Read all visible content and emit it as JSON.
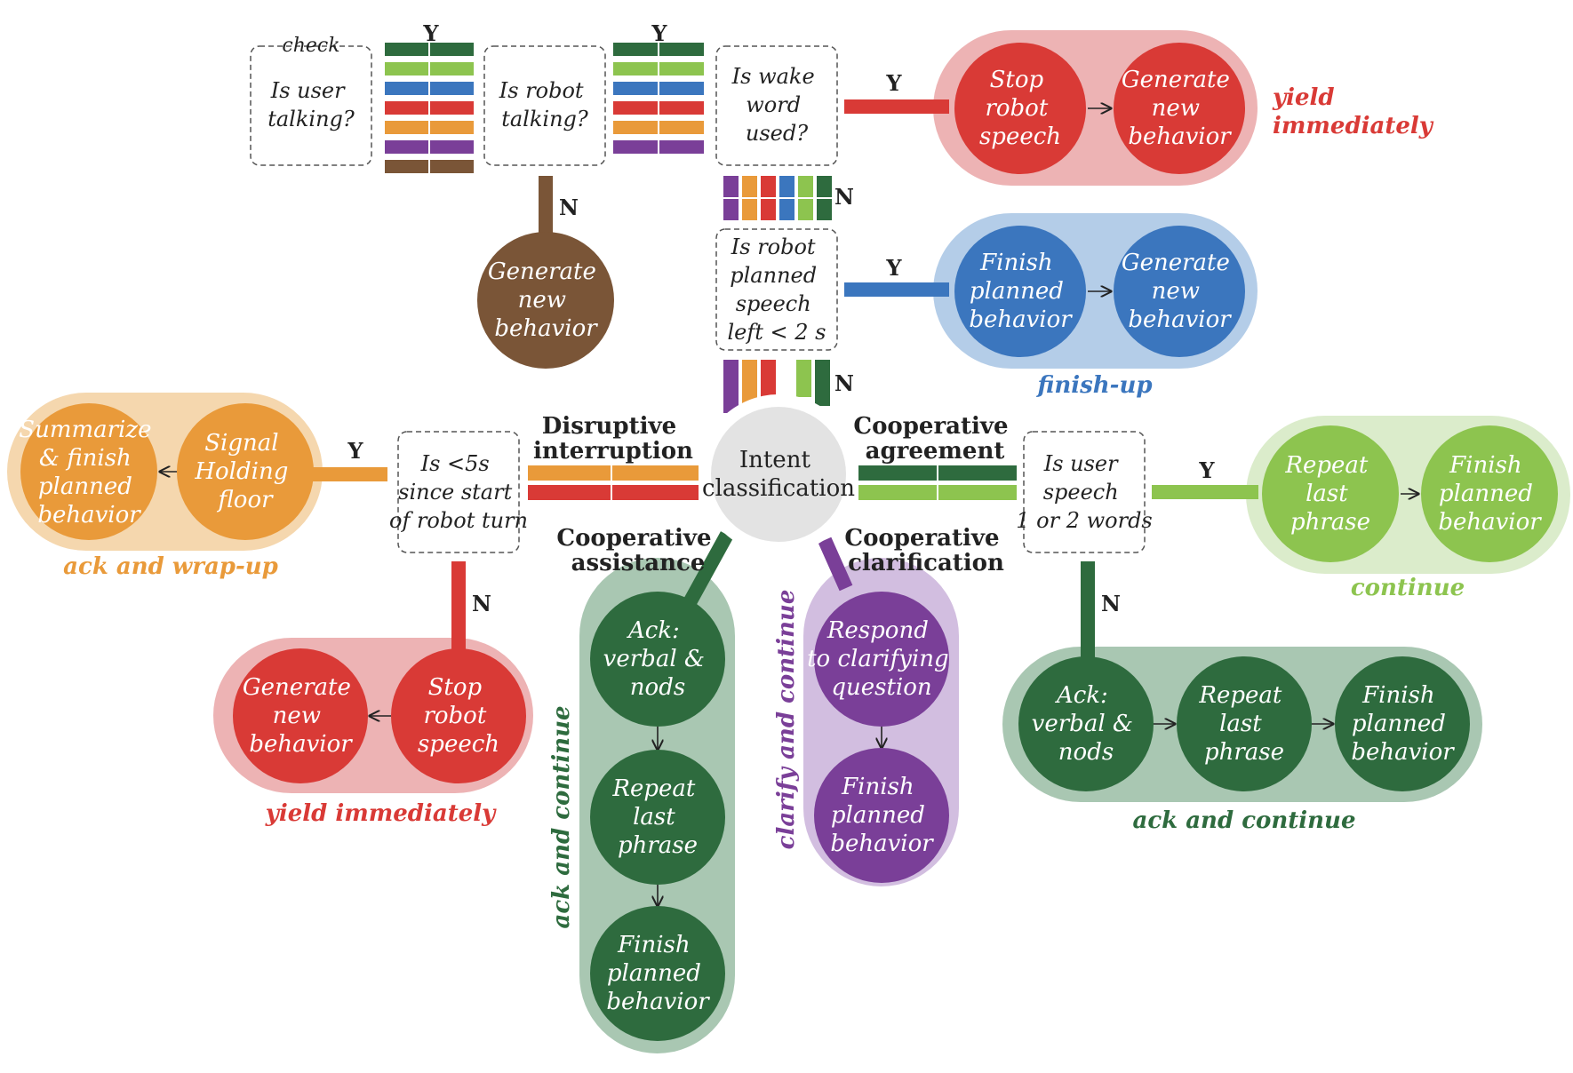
{
  "colors": {
    "dark_green": "#2e6b3e",
    "light_green": "#8dc44f",
    "blue": "#3b76be",
    "red": "#d93a36",
    "orange": "#e99a3a",
    "purple": "#7a3f98",
    "brown": "#7a5537",
    "pale_red": "#edb3b4",
    "pale_blue": "#b4cde8",
    "pale_orange": "#f5d7ae",
    "pale_green": "#dbeccb",
    "pale_dark_green": "#a9c7b2",
    "pale_purple": "#d2bee0",
    "center_gray": "#e3e3e3"
  },
  "labels": {
    "check": "check",
    "yes": "Y",
    "no": "N"
  },
  "questions": {
    "user_talking": [
      "Is user",
      "talking?"
    ],
    "robot_talking": [
      "Is robot",
      "talking?"
    ],
    "wake_word": [
      "Is wake",
      "word",
      "used?"
    ],
    "planned_left": [
      "Is robot",
      "planned",
      "speech",
      "left < 2 s"
    ],
    "since_start": [
      "Is <5s",
      "since start",
      "of robot turn"
    ],
    "user_words": [
      "Is user",
      "speech",
      "1 or 2 words"
    ]
  },
  "center": {
    "title": [
      "Intent",
      "classification"
    ]
  },
  "intents": {
    "disruptive": [
      "Disruptive",
      "interruption"
    ],
    "agreement": [
      "Cooperative",
      "agreement"
    ],
    "assistance": [
      "Cooperative",
      "assistance"
    ],
    "clarification": [
      "Cooperative",
      "clarification"
    ]
  },
  "actions": {
    "stop_speech": [
      "Stop",
      "robot",
      "speech"
    ],
    "generate_new": [
      "Generate",
      "new",
      "behavior"
    ],
    "finish_planned": [
      "Finish",
      "planned",
      "behavior"
    ],
    "summarize": [
      "Summarize",
      "& finish",
      "planned",
      "behavior"
    ],
    "signal_floor": [
      "Signal",
      "Holding",
      "floor"
    ],
    "repeat_phrase": [
      "Repeat",
      "last",
      "phrase"
    ],
    "ack_nods": [
      "Ack:",
      "verbal &",
      "nods"
    ],
    "respond_clarify": [
      "Respond",
      "to clarifying",
      "question"
    ]
  },
  "strategies": {
    "yield_immediately_top": [
      "yield",
      "immediately"
    ],
    "finish_up": "finish-up",
    "ack_wrap_up": "ack and wrap-up",
    "continue": "continue",
    "yield_immediately_bottom": "yield immediately",
    "ack_continue_vertical": "ack and continue",
    "clarify_continue": "clarify and continue",
    "ack_continue_bottom": "ack and continue"
  }
}
